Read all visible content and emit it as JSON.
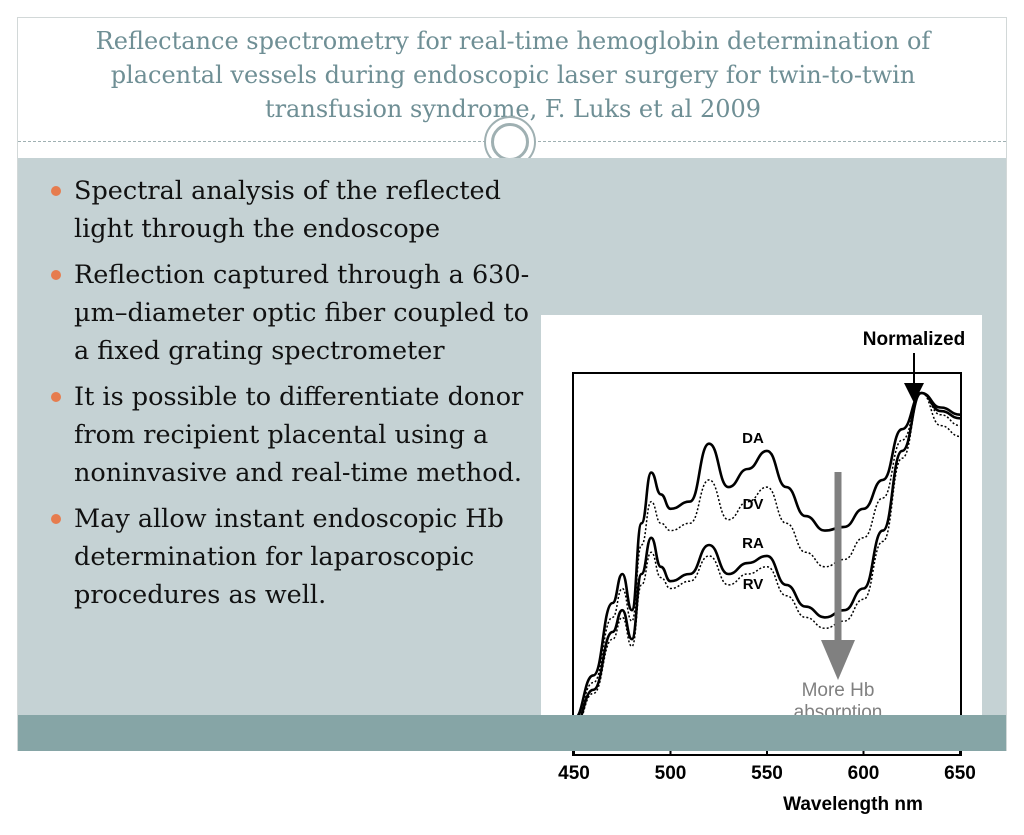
{
  "slide": {
    "title": "Reflectance spectrometry for real-time hemoglobin determination of placental vessels during endoscopic laser surgery for twin-to-twin transfusion syndrome, F. Luks et al 2009",
    "bullets": [
      "Spectral analysis of the reflected light through the endoscope",
      "Reflection captured through a 630-µm–diameter optic fiber coupled to a fixed grating spectrometer",
      "It is possible to differentiate donor from recipient placental using a noninvasive and real-time method.",
      "May allow instant endoscopic Hb determination for laparoscopic procedures as well."
    ],
    "colors": {
      "title": "#6f8f95",
      "content_background": "#c5d2d4",
      "footer": "#86a5a6",
      "bullet_marker": "#e67c4e"
    }
  },
  "chart_data": {
    "type": "line",
    "xlabel": "Wavelength nm",
    "ylabel": "",
    "xlim": [
      450,
      650
    ],
    "x_ticks": [
      450,
      500,
      550,
      600,
      650
    ],
    "y_ticks_shown": false,
    "grid": false,
    "annotations": {
      "top": "Normalized",
      "arrow_label_line1": "More Hb",
      "arrow_label_line2": "absorption"
    },
    "series": [
      {
        "name": "DA",
        "style": "solid",
        "x": [
          450,
          460,
          470,
          475,
          480,
          485,
          490,
          495,
          500,
          510,
          520,
          530,
          540,
          550,
          560,
          570,
          580,
          590,
          600,
          610,
          620,
          630,
          640,
          650
        ],
        "y": [
          0.1,
          0.22,
          0.42,
          0.5,
          0.4,
          0.64,
          0.78,
          0.72,
          0.68,
          0.7,
          0.86,
          0.74,
          0.79,
          0.84,
          0.74,
          0.66,
          0.62,
          0.63,
          0.68,
          0.76,
          0.9,
          1.0,
          0.95,
          0.93
        ]
      },
      {
        "name": "DV",
        "style": "dotted",
        "x": [
          450,
          460,
          470,
          475,
          480,
          485,
          490,
          495,
          500,
          510,
          520,
          530,
          540,
          550,
          560,
          570,
          580,
          590,
          600,
          610,
          620,
          630,
          640,
          650
        ],
        "y": [
          0.09,
          0.2,
          0.38,
          0.46,
          0.37,
          0.58,
          0.7,
          0.64,
          0.62,
          0.64,
          0.76,
          0.65,
          0.7,
          0.74,
          0.64,
          0.56,
          0.52,
          0.54,
          0.6,
          0.71,
          0.87,
          1.0,
          0.91,
          0.88
        ]
      },
      {
        "name": "RA",
        "style": "solid",
        "x": [
          450,
          460,
          470,
          475,
          480,
          485,
          490,
          495,
          500,
          510,
          520,
          530,
          540,
          550,
          560,
          570,
          580,
          590,
          600,
          610,
          620,
          630,
          640,
          650
        ],
        "y": [
          0.08,
          0.18,
          0.34,
          0.4,
          0.32,
          0.5,
          0.6,
          0.52,
          0.48,
          0.5,
          0.58,
          0.5,
          0.53,
          0.55,
          0.47,
          0.41,
          0.38,
          0.4,
          0.46,
          0.62,
          0.84,
          1.0,
          0.96,
          0.94
        ]
      },
      {
        "name": "RV",
        "style": "dotted",
        "x": [
          450,
          460,
          470,
          475,
          480,
          485,
          490,
          495,
          500,
          510,
          520,
          530,
          540,
          550,
          560,
          570,
          580,
          590,
          600,
          610,
          620,
          630,
          640,
          650
        ],
        "y": [
          0.07,
          0.17,
          0.32,
          0.38,
          0.3,
          0.47,
          0.56,
          0.49,
          0.46,
          0.48,
          0.55,
          0.47,
          0.5,
          0.52,
          0.44,
          0.38,
          0.35,
          0.37,
          0.43,
          0.59,
          0.82,
          1.0,
          0.94,
          0.91
        ]
      }
    ]
  }
}
